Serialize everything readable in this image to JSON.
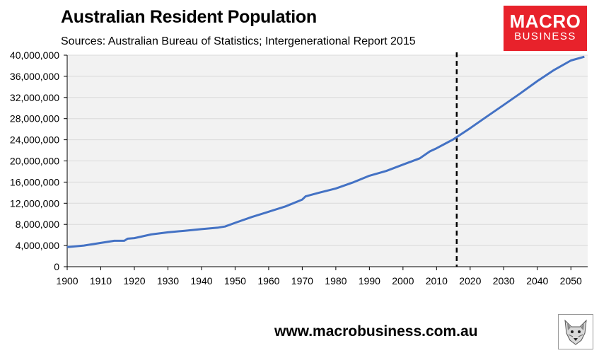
{
  "header": {
    "title": "Australian Resident Population",
    "subtitle": "Sources: Australian Bureau of Statistics; Intergenerational Report 2015"
  },
  "logo": {
    "line1": "MACRO",
    "line2": "BUSINESS",
    "color": "#e8222b"
  },
  "footer": {
    "url": "www.macrobusiness.com.au",
    "mascot_icon": "wolf-icon"
  },
  "colors": {
    "line": "#4472c4",
    "plot_bg": "#f2f2f2",
    "divider": "#000000"
  },
  "chart_data": {
    "type": "line",
    "title": "Australian Resident Population",
    "xlabel": "",
    "ylabel": "",
    "xlim": [
      1900,
      2055
    ],
    "ylim": [
      0,
      40000000
    ],
    "xticks": [
      1900,
      1910,
      1920,
      1930,
      1940,
      1950,
      1960,
      1970,
      1980,
      1990,
      2000,
      2010,
      2020,
      2030,
      2040,
      2050
    ],
    "xtick_labels": [
      "1900",
      "1910",
      "1920",
      "1930",
      "1940",
      "1950",
      "1960",
      "1970",
      "1980",
      "1990",
      "2000",
      "2010",
      "2020",
      "2030",
      "2040",
      "2050"
    ],
    "yticks": [
      0,
      4000000,
      8000000,
      12000000,
      16000000,
      20000000,
      24000000,
      28000000,
      32000000,
      36000000,
      40000000
    ],
    "ytick_labels": [
      "0",
      "4,000,000",
      "8,000,000",
      "12,000,000",
      "16,000,000",
      "20,000,000",
      "24,000,000",
      "28,000,000",
      "32,000,000",
      "36,000,000",
      "40,000,000"
    ],
    "grid": true,
    "projection_start": 2016,
    "series": [
      {
        "x": [
          1900,
          1905,
          1910,
          1914,
          1917,
          1918,
          1920,
          1925,
          1930,
          1935,
          1940,
          1945,
          1947,
          1950,
          1955,
          1960,
          1965,
          1970,
          1971,
          1975,
          1980,
          1985,
          1990,
          1995,
          2000,
          2005,
          2008,
          2010,
          2015,
          2020,
          2025,
          2030,
          2035,
          2040,
          2045,
          2050,
          2054
        ],
        "y": [
          3700000,
          4000000,
          4500000,
          4900000,
          4900000,
          5300000,
          5400000,
          6100000,
          6500000,
          6800000,
          7100000,
          7400000,
          7600000,
          8300000,
          9400000,
          10400000,
          11400000,
          12700000,
          13300000,
          14000000,
          14800000,
          15900000,
          17200000,
          18100000,
          19300000,
          20500000,
          21800000,
          22400000,
          24100000,
          26200000,
          28400000,
          30600000,
          32800000,
          35100000,
          37200000,
          39000000,
          39700000
        ]
      }
    ]
  }
}
